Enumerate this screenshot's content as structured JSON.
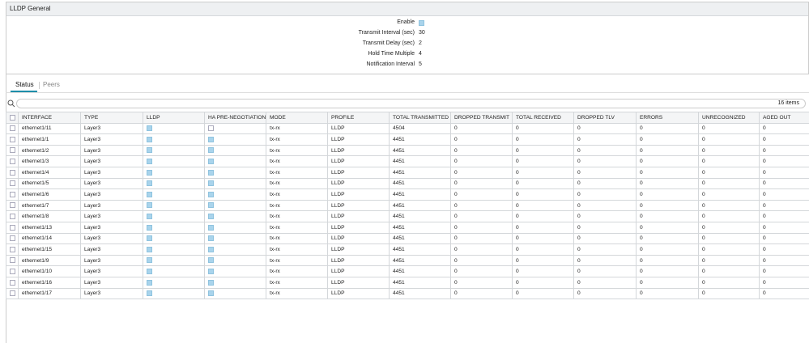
{
  "panel": {
    "title": "LLDP General",
    "fields": [
      {
        "label": "Enable",
        "checked": true
      },
      {
        "label": "Transmit Interval (sec)",
        "value": 30
      },
      {
        "label": "Transmit Delay (sec)",
        "value": 2
      },
      {
        "label": "Hold Time Multiple",
        "value": 4
      },
      {
        "label": "Notification Interval",
        "value": 5
      }
    ]
  },
  "tabs": [
    "Status",
    "Peers"
  ],
  "search": {
    "count": "16 items"
  },
  "table": {
    "columns": [
      "INTERFACE",
      "TYPE",
      "LLDP",
      "HA PRE-NEGOTIATION",
      "MODE",
      "PROFILE",
      "TOTAL TRANSMITTED",
      "DROPPED TRANSMIT",
      "TOTAL RECEIVED",
      "DROPPED TLV",
      "ERRORS",
      "UNRECOGNIZED",
      "AGED OUT"
    ],
    "rows": [
      [
        "ethernet1/11",
        "Layer3",
        true,
        false,
        "tx-rx",
        "LLDP",
        4504,
        0,
        0,
        0,
        0,
        0,
        0
      ],
      [
        "ethernet1/1",
        "Layer3",
        true,
        true,
        "tx-rx",
        "LLDP",
        4451,
        0,
        0,
        0,
        0,
        0,
        0
      ],
      [
        "ethernet1/2",
        "Layer3",
        true,
        true,
        "tx-rx",
        "LLDP",
        4451,
        0,
        0,
        0,
        0,
        0,
        0
      ],
      [
        "ethernet1/3",
        "Layer3",
        true,
        true,
        "tx-rx",
        "LLDP",
        4451,
        0,
        0,
        0,
        0,
        0,
        0
      ],
      [
        "ethernet1/4",
        "Layer3",
        true,
        true,
        "tx-rx",
        "LLDP",
        4451,
        0,
        0,
        0,
        0,
        0,
        0
      ],
      [
        "ethernet1/5",
        "Layer3",
        true,
        true,
        "tx-rx",
        "LLDP",
        4451,
        0,
        0,
        0,
        0,
        0,
        0
      ],
      [
        "ethernet1/6",
        "Layer3",
        true,
        true,
        "tx-rx",
        "LLDP",
        4451,
        0,
        0,
        0,
        0,
        0,
        0
      ],
      [
        "ethernet1/7",
        "Layer3",
        true,
        true,
        "tx-rx",
        "LLDP",
        4451,
        0,
        0,
        0,
        0,
        0,
        0
      ],
      [
        "ethernet1/8",
        "Layer3",
        true,
        true,
        "tx-rx",
        "LLDP",
        4451,
        0,
        0,
        0,
        0,
        0,
        0
      ],
      [
        "ethernet1/13",
        "Layer3",
        true,
        true,
        "tx-rx",
        "LLDP",
        4451,
        0,
        0,
        0,
        0,
        0,
        0
      ],
      [
        "ethernet1/14",
        "Layer3",
        true,
        true,
        "tx-rx",
        "LLDP",
        4451,
        0,
        0,
        0,
        0,
        0,
        0
      ],
      [
        "ethernet1/15",
        "Layer3",
        true,
        true,
        "tx-rx",
        "LLDP",
        4451,
        0,
        0,
        0,
        0,
        0,
        0
      ],
      [
        "ethernet1/9",
        "Layer3",
        true,
        true,
        "tx-rx",
        "LLDP",
        4451,
        0,
        0,
        0,
        0,
        0,
        0
      ],
      [
        "ethernet1/10",
        "Layer3",
        true,
        true,
        "tx-rx",
        "LLDP",
        4451,
        0,
        0,
        0,
        0,
        0,
        0
      ],
      [
        "ethernet1/16",
        "Layer3",
        true,
        true,
        "tx-rx",
        "LLDP",
        4451,
        0,
        0,
        0,
        0,
        0,
        0
      ],
      [
        "ethernet1/17",
        "Layer3",
        true,
        true,
        "tx-rx",
        "LLDP",
        4451,
        0,
        0,
        0,
        0,
        0,
        0
      ]
    ]
  }
}
